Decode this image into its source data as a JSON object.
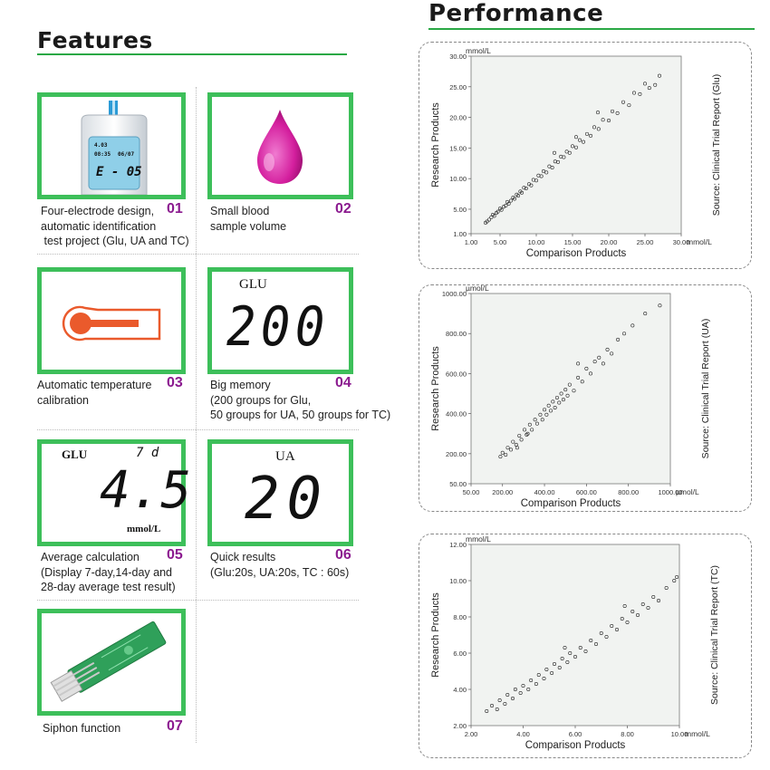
{
  "features": {
    "title": "Features",
    "items": [
      {
        "number": "01",
        "caption": "Four-electrode design,\nautomatic identification\n test project (Glu, UA and TC)",
        "icon": "glucose-meter-icon"
      },
      {
        "number": "02",
        "caption": "Small blood\nsample volume",
        "icon": "blood-drop-icon"
      },
      {
        "number": "03",
        "caption": "Automatic temperature\ncalibration",
        "icon": "thermometer-icon"
      },
      {
        "number": "04",
        "caption": "Big memory\n(200 groups for Glu,\n50 groups for UA, 50 groups for TC)",
        "icon": "lcd-display"
      },
      {
        "number": "05",
        "caption": "Average calculation\n(Display 7-day,14-day and\n28-day average test result)",
        "icon": "lcd-display"
      },
      {
        "number": "06",
        "caption": "Quick results\n(Glu:20s, UA:20s, TC : 60s)",
        "icon": "lcd-display"
      },
      {
        "number": "07",
        "caption": "Siphon function",
        "icon": "test-strip-icon"
      }
    ],
    "meter_screen": {
      "line1": "4.03",
      "line1b": "08:35",
      "line1c": "06/07",
      "main": "E - 05"
    },
    "lcd4": {
      "label": "GLU",
      "value": "200"
    },
    "lcd5": {
      "label": "GLU",
      "days": "7 d",
      "value": "4.5",
      "unit": "mmol/L"
    },
    "lcd6": {
      "label": "UA",
      "value": "20"
    }
  },
  "performance": {
    "title": "Performance",
    "colors": {
      "accent": "#2aa845",
      "number": "#8b1a8f",
      "plot_bg": "#f1f3f1"
    }
  },
  "chart_data": [
    {
      "type": "scatter",
      "title": "",
      "xlabel": "Comparison Products",
      "ylabel": "Research Products",
      "xunit": "mmol/L",
      "yunit": "mmol/L",
      "side_label": "Source: Clinical Trial Report (Glu)",
      "xlim": [
        1,
        30
      ],
      "ylim": [
        1,
        30
      ],
      "xticks": [
        "1.00",
        "5.00",
        "10.00",
        "15.00",
        "20.00",
        "25.00",
        "30.00"
      ],
      "xtick_values": [
        1,
        5,
        10,
        15,
        20,
        25,
        30
      ],
      "yticks": [
        "1.00",
        "5.00",
        "10.00",
        "15.00",
        "20.00",
        "25.00",
        "30.00"
      ],
      "ytick_values": [
        1,
        5,
        10,
        15,
        20,
        25,
        30
      ],
      "points": [
        [
          3.0,
          2.8
        ],
        [
          3.2,
          3.0
        ],
        [
          3.5,
          3.3
        ],
        [
          3.8,
          3.7
        ],
        [
          4.0,
          4.1
        ],
        [
          4.2,
          3.9
        ],
        [
          4.5,
          4.4
        ],
        [
          4.7,
          4.6
        ],
        [
          5.0,
          5.1
        ],
        [
          5.2,
          4.9
        ],
        [
          5.5,
          5.4
        ],
        [
          5.8,
          5.6
        ],
        [
          6.0,
          6.2
        ],
        [
          6.2,
          5.9
        ],
        [
          6.5,
          6.4
        ],
        [
          6.8,
          6.9
        ],
        [
          7.0,
          6.7
        ],
        [
          7.3,
          7.4
        ],
        [
          7.5,
          7.2
        ],
        [
          7.8,
          7.9
        ],
        [
          8.0,
          7.7
        ],
        [
          8.3,
          8.5
        ],
        [
          8.6,
          8.4
        ],
        [
          9.0,
          9.1
        ],
        [
          9.3,
          8.9
        ],
        [
          9.6,
          9.8
        ],
        [
          10.0,
          9.7
        ],
        [
          10.3,
          10.5
        ],
        [
          10.7,
          10.4
        ],
        [
          11.0,
          11.2
        ],
        [
          11.4,
          11.0
        ],
        [
          11.8,
          12.0
        ],
        [
          12.2,
          11.8
        ],
        [
          12.6,
          12.8
        ],
        [
          13.0,
          12.7
        ],
        [
          13.4,
          13.6
        ],
        [
          13.8,
          13.5
        ],
        [
          14.2,
          14.4
        ],
        [
          14.6,
          14.2
        ],
        [
          15.0,
          15.3
        ],
        [
          15.5,
          15.1
        ],
        [
          16.0,
          16.3
        ],
        [
          16.5,
          16.0
        ],
        [
          17.0,
          17.3
        ],
        [
          17.5,
          17.0
        ],
        [
          18.0,
          18.4
        ],
        [
          18.6,
          18.1
        ],
        [
          19.2,
          19.6
        ],
        [
          20.0,
          19.5
        ],
        [
          20.5,
          21.0
        ],
        [
          21.2,
          20.7
        ],
        [
          22.0,
          22.5
        ],
        [
          22.8,
          22.0
        ],
        [
          23.5,
          24.0
        ],
        [
          24.3,
          23.8
        ],
        [
          25.0,
          25.5
        ],
        [
          25.6,
          24.8
        ],
        [
          26.4,
          25.3
        ],
        [
          27.0,
          26.8
        ],
        [
          15.5,
          16.8
        ],
        [
          18.5,
          20.8
        ],
        [
          12.5,
          14.2
        ]
      ]
    },
    {
      "type": "scatter",
      "title": "",
      "xlabel": "Comparison Products",
      "ylabel": "Research Products",
      "xunit": "µmol/L",
      "yunit": "µmol/L",
      "side_label": "Source: Clinical Trial Report (UA)",
      "xlim": [
        50,
        1000
      ],
      "ylim": [
        50,
        1000
      ],
      "xticks": [
        "50.00",
        "200.00",
        "400.00",
        "600.00",
        "800.00",
        "1000.00"
      ],
      "xtick_values": [
        50,
        200,
        400,
        600,
        800,
        1000
      ],
      "yticks": [
        "50.00",
        "200.00",
        "400.00",
        "600.00",
        "800.00",
        "1000.00"
      ],
      "ytick_values": [
        50,
        200,
        400,
        600,
        800,
        1000
      ],
      "points": [
        [
          190,
          185
        ],
        [
          200,
          205
        ],
        [
          215,
          195
        ],
        [
          225,
          230
        ],
        [
          240,
          220
        ],
        [
          250,
          260
        ],
        [
          265,
          245
        ],
        [
          280,
          290
        ],
        [
          290,
          270
        ],
        [
          305,
          320
        ],
        [
          315,
          295
        ],
        [
          330,
          345
        ],
        [
          340,
          320
        ],
        [
          355,
          370
        ],
        [
          365,
          350
        ],
        [
          380,
          395
        ],
        [
          390,
          370
        ],
        [
          400,
          420
        ],
        [
          410,
          395
        ],
        [
          420,
          440
        ],
        [
          430,
          415
        ],
        [
          440,
          460
        ],
        [
          450,
          430
        ],
        [
          460,
          480
        ],
        [
          470,
          455
        ],
        [
          480,
          500
        ],
        [
          490,
          470
        ],
        [
          500,
          520
        ],
        [
          510,
          490
        ],
        [
          520,
          545
        ],
        [
          540,
          515
        ],
        [
          560,
          580
        ],
        [
          580,
          560
        ],
        [
          600,
          625
        ],
        [
          620,
          600
        ],
        [
          640,
          660
        ],
        [
          660,
          680
        ],
        [
          680,
          650
        ],
        [
          700,
          720
        ],
        [
          720,
          700
        ],
        [
          750,
          770
        ],
        [
          780,
          800
        ],
        [
          820,
          840
        ],
        [
          880,
          900
        ],
        [
          950,
          940
        ],
        [
          560,
          650
        ],
        [
          320,
          300
        ],
        [
          270,
          230
        ]
      ]
    },
    {
      "type": "scatter",
      "title": "",
      "xlabel": "Comparison Products",
      "ylabel": "Research Products",
      "xunit": "mmol/L",
      "yunit": "mmol/L",
      "side_label": "Source: Clinical Trial Report (TC)",
      "xlim": [
        2,
        10
      ],
      "ylim": [
        2,
        12
      ],
      "xticks": [
        "2.00",
        "4.00",
        "6.00",
        "8.00",
        "10.00"
      ],
      "xtick_values": [
        2,
        4,
        6,
        8,
        10
      ],
      "yticks": [
        "2.00",
        "4.00",
        "6.00",
        "8.00",
        "10.00",
        "12.00"
      ],
      "ytick_values": [
        2,
        4,
        6,
        8,
        10,
        12
      ],
      "points": [
        [
          2.6,
          2.8
        ],
        [
          2.8,
          3.1
        ],
        [
          3.0,
          2.9
        ],
        [
          3.1,
          3.4
        ],
        [
          3.3,
          3.2
        ],
        [
          3.4,
          3.7
        ],
        [
          3.6,
          3.5
        ],
        [
          3.7,
          4.0
        ],
        [
          3.9,
          3.8
        ],
        [
          4.0,
          4.2
        ],
        [
          4.2,
          4.0
        ],
        [
          4.3,
          4.5
        ],
        [
          4.5,
          4.3
        ],
        [
          4.6,
          4.8
        ],
        [
          4.8,
          4.6
        ],
        [
          4.9,
          5.1
        ],
        [
          5.1,
          4.9
        ],
        [
          5.2,
          5.4
        ],
        [
          5.4,
          5.2
        ],
        [
          5.5,
          5.7
        ],
        [
          5.7,
          5.5
        ],
        [
          5.8,
          6.0
        ],
        [
          6.0,
          5.8
        ],
        [
          6.2,
          6.3
        ],
        [
          6.4,
          6.1
        ],
        [
          6.6,
          6.7
        ],
        [
          6.8,
          6.5
        ],
        [
          7.0,
          7.1
        ],
        [
          7.2,
          6.9
        ],
        [
          7.4,
          7.5
        ],
        [
          7.6,
          7.3
        ],
        [
          7.8,
          7.9
        ],
        [
          8.0,
          7.7
        ],
        [
          8.2,
          8.3
        ],
        [
          8.4,
          8.1
        ],
        [
          8.6,
          8.7
        ],
        [
          8.8,
          8.5
        ],
        [
          9.0,
          9.1
        ],
        [
          9.2,
          8.9
        ],
        [
          9.5,
          9.6
        ],
        [
          9.8,
          10.0
        ],
        [
          9.9,
          10.2
        ],
        [
          5.6,
          6.3
        ],
        [
          7.9,
          8.6
        ]
      ]
    }
  ]
}
